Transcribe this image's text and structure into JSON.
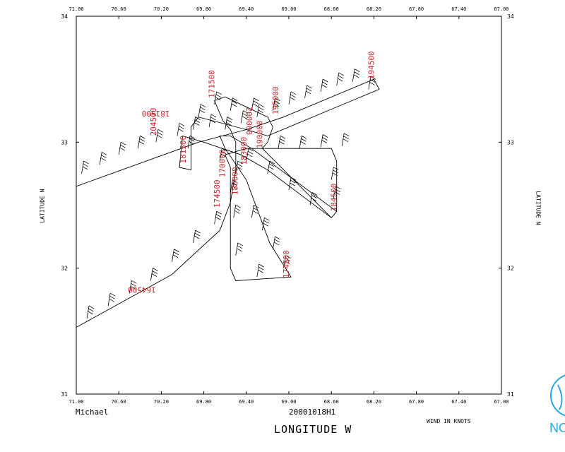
{
  "chart_data": {
    "type": "wind-barb-map",
    "storm_name": "Michael",
    "flight_id": "20001018H1",
    "xlabel": "LONGITUDE  W",
    "ylabel": "LATITUDE  N",
    "units_note": "WIND IN KNOTS",
    "xlim": [
      71.0,
      67.0
    ],
    "ylim": [
      31,
      34
    ],
    "x_ticks": [
      "71.00",
      "70.60",
      "70.20",
      "69.80",
      "69.40",
      "69.00",
      "68.60",
      "68.20",
      "67.80",
      "67.40",
      "67.00"
    ],
    "y_ticks": [
      "34",
      "33",
      "32",
      "31"
    ],
    "track": [
      [
        71.0,
        31.53
      ],
      [
        70.1,
        31.95
      ],
      [
        69.65,
        32.3
      ],
      [
        69.55,
        32.52
      ],
      [
        69.5,
        32.78
      ],
      [
        69.5,
        33.0
      ],
      [
        69.55,
        33.1
      ],
      [
        69.62,
        33.17
      ],
      [
        69.7,
        33.33
      ],
      [
        69.6,
        33.36
      ],
      [
        69.45,
        33.3
      ],
      [
        69.2,
        33.2
      ],
      [
        69.15,
        33.12
      ],
      [
        69.2,
        33.0
      ],
      [
        69.25,
        32.95
      ],
      [
        68.6,
        32.4
      ],
      [
        68.55,
        32.45
      ],
      [
        69.35,
        32.95
      ],
      [
        69.55,
        33.05
      ],
      [
        69.65,
        33.05
      ],
      [
        69.6,
        32.95
      ],
      [
        69.4,
        32.7
      ],
      [
        69.18,
        32.2
      ],
      [
        68.98,
        31.93
      ],
      [
        69.5,
        31.9
      ],
      [
        69.55,
        32.0
      ],
      [
        69.55,
        32.8
      ],
      [
        69.6,
        32.9
      ],
      [
        69.4,
        32.95
      ],
      [
        68.6,
        32.95
      ],
      [
        68.55,
        32.85
      ],
      [
        68.55,
        32.45
      ],
      [
        68.6,
        32.4
      ],
      [
        69.2,
        32.78
      ],
      [
        69.45,
        32.9
      ],
      [
        69.8,
        33.0
      ],
      [
        70.0,
        33.05
      ],
      [
        70.03,
        32.8
      ],
      [
        69.92,
        32.78
      ],
      [
        69.92,
        33.12
      ],
      [
        69.85,
        33.2
      ],
      [
        69.4,
        33.1
      ],
      [
        69.2,
        33.05
      ],
      [
        68.15,
        33.42
      ],
      [
        68.2,
        33.5
      ],
      [
        69.05,
        33.2
      ],
      [
        69.4,
        33.1
      ],
      [
        69.85,
        33.0
      ],
      [
        71.0,
        32.65
      ]
    ],
    "barbs": [
      [
        70.95,
        32.75
      ],
      [
        70.78,
        32.82
      ],
      [
        70.6,
        32.9
      ],
      [
        70.42,
        32.95
      ],
      [
        70.25,
        33.0
      ],
      [
        70.05,
        33.05
      ],
      [
        69.9,
        33.1
      ],
      [
        69.75,
        33.12
      ],
      [
        69.6,
        33.1
      ],
      [
        69.45,
        33.15
      ],
      [
        69.3,
        33.2
      ],
      [
        69.15,
        33.25
      ],
      [
        69.0,
        33.3
      ],
      [
        68.85,
        33.35
      ],
      [
        68.7,
        33.4
      ],
      [
        68.55,
        33.45
      ],
      [
        68.4,
        33.48
      ],
      [
        68.25,
        33.42
      ],
      [
        68.5,
        32.97
      ],
      [
        68.7,
        32.96
      ],
      [
        68.9,
        32.95
      ],
      [
        69.1,
        32.95
      ],
      [
        68.6,
        32.7
      ],
      [
        68.58,
        32.55
      ],
      [
        68.8,
        32.5
      ],
      [
        69.0,
        32.62
      ],
      [
        69.2,
        32.75
      ],
      [
        69.4,
        32.85
      ],
      [
        69.35,
        32.4
      ],
      [
        69.25,
        32.3
      ],
      [
        69.15,
        32.15
      ],
      [
        69.05,
        32.0
      ],
      [
        69.3,
        31.93
      ],
      [
        69.5,
        32.1
      ],
      [
        69.52,
        32.4
      ],
      [
        69.55,
        32.6
      ],
      [
        69.7,
        32.35
      ],
      [
        69.9,
        32.2
      ],
      [
        70.1,
        32.05
      ],
      [
        70.3,
        31.9
      ],
      [
        70.5,
        31.8
      ],
      [
        70.7,
        31.7
      ],
      [
        70.9,
        31.6
      ],
      [
        69.85,
        33.2
      ],
      [
        69.7,
        33.3
      ],
      [
        69.55,
        33.25
      ],
      [
        69.35,
        33.25
      ],
      [
        69.95,
        32.95
      ],
      [
        69.65,
        32.85
      ],
      [
        69.5,
        32.75
      ]
    ],
    "time_labels": [
      {
        "text": "194500",
        "lon": 68.2,
        "lat": 33.5,
        "rot": -90
      },
      {
        "text": "171500",
        "lon": 69.7,
        "lat": 33.35,
        "rot": -90
      },
      {
        "text": "200000",
        "lon": 69.4,
        "lat": 33.28,
        "rot": 90
      },
      {
        "text": "195000",
        "lon": 69.1,
        "lat": 33.22,
        "rot": -90
      },
      {
        "text": "181500",
        "lon": 70.12,
        "lat": 33.25,
        "rot": 180
      },
      {
        "text": "204500",
        "lon": 70.25,
        "lat": 33.05,
        "rot": -90
      },
      {
        "text": "181500",
        "lon": 69.97,
        "lat": 32.83,
        "rot": -90
      },
      {
        "text": "190000",
        "lon": 69.25,
        "lat": 32.95,
        "rot": -90
      },
      {
        "text": "183000",
        "lon": 69.4,
        "lat": 32.82,
        "rot": -90
      },
      {
        "text": "170000",
        "lon": 69.6,
        "lat": 32.72,
        "rot": -90
      },
      {
        "text": "180000",
        "lon": 69.48,
        "lat": 32.58,
        "rot": -90
      },
      {
        "text": "174500",
        "lon": 69.65,
        "lat": 32.48,
        "rot": -90
      },
      {
        "text": "184500",
        "lon": 68.55,
        "lat": 32.45,
        "rot": -90
      },
      {
        "text": "174500",
        "lon": 69.0,
        "lat": 31.92,
        "rot": -90
      },
      {
        "text": "164500",
        "lon": 70.25,
        "lat": 31.85,
        "rot": 180
      }
    ]
  }
}
